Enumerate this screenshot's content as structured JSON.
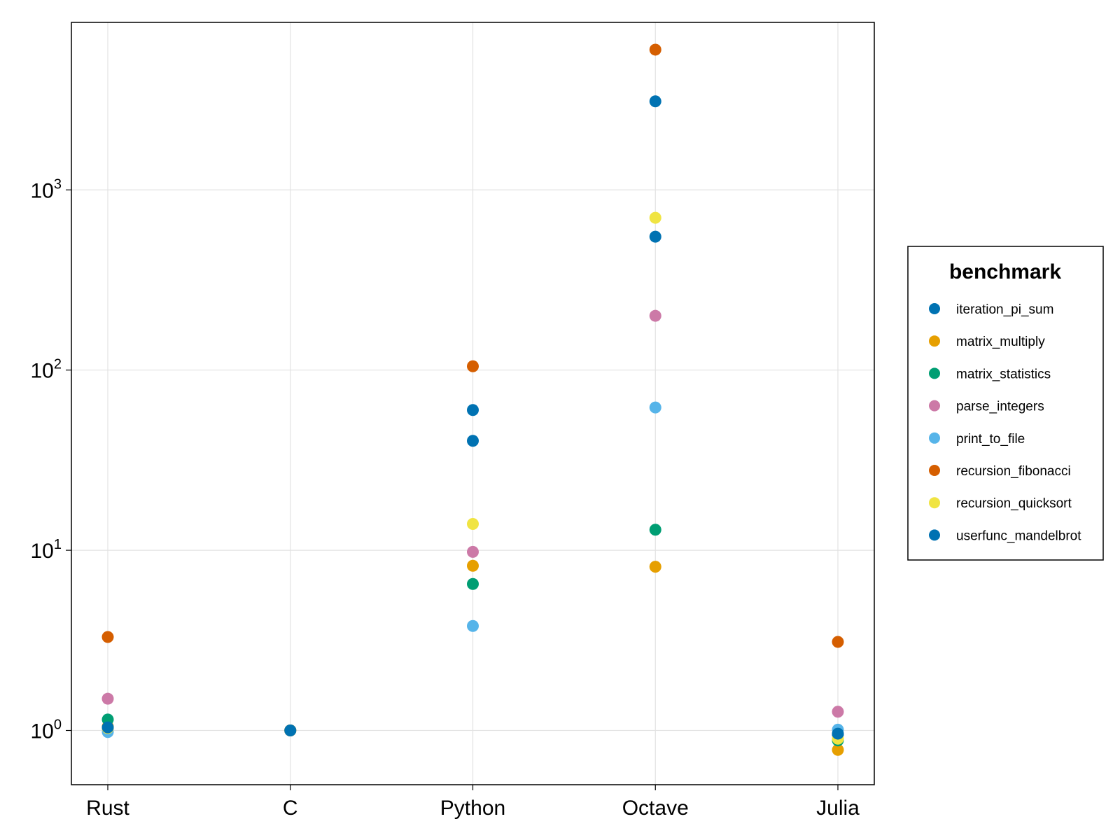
{
  "chart_data": {
    "type": "scatter",
    "categories": [
      "Rust",
      "C",
      "Python",
      "Octave",
      "Julia"
    ],
    "y_scale": "log10",
    "ylim": [
      0.5,
      8500
    ],
    "y_ticks": [
      {
        "value": 1,
        "base": "10",
        "exp": "0"
      },
      {
        "value": 10,
        "base": "10",
        "exp": "1"
      },
      {
        "value": 100,
        "base": "10",
        "exp": "2"
      },
      {
        "value": 1000,
        "base": "10",
        "exp": "3"
      }
    ],
    "grid": true,
    "legend": {
      "title": "benchmark",
      "placement": "right"
    },
    "series": [
      {
        "name": "iteration_pi_sum",
        "color": "#0072b2",
        "values": [
          1.03,
          1.0,
          40.5,
          3100,
          0.95
        ]
      },
      {
        "name": "matrix_multiply",
        "color": "#e69f00",
        "values": [
          1.05,
          1.0,
          8.2,
          8.1,
          0.78
        ]
      },
      {
        "name": "matrix_statistics",
        "color": "#009e73",
        "values": [
          1.15,
          1.0,
          6.5,
          13.0,
          0.88
        ]
      },
      {
        "name": "parse_integers",
        "color": "#cc79a7",
        "values": [
          1.5,
          1.0,
          9.8,
          200,
          1.27
        ]
      },
      {
        "name": "print_to_file",
        "color": "#56b4e9",
        "values": [
          0.98,
          1.0,
          3.8,
          62,
          1.01
        ]
      },
      {
        "name": "recursion_fibonacci",
        "color": "#d55e00",
        "values": [
          3.3,
          1.0,
          105,
          6000,
          3.1
        ]
      },
      {
        "name": "recursion_quicksort",
        "color": "#f0e442",
        "values": [
          1.03,
          1.0,
          14.0,
          700,
          0.9
        ]
      },
      {
        "name": "userfunc_mandelbrot",
        "color": "#0072b2",
        "values": [
          1.04,
          1.0,
          60,
          550,
          0.96
        ]
      }
    ]
  }
}
